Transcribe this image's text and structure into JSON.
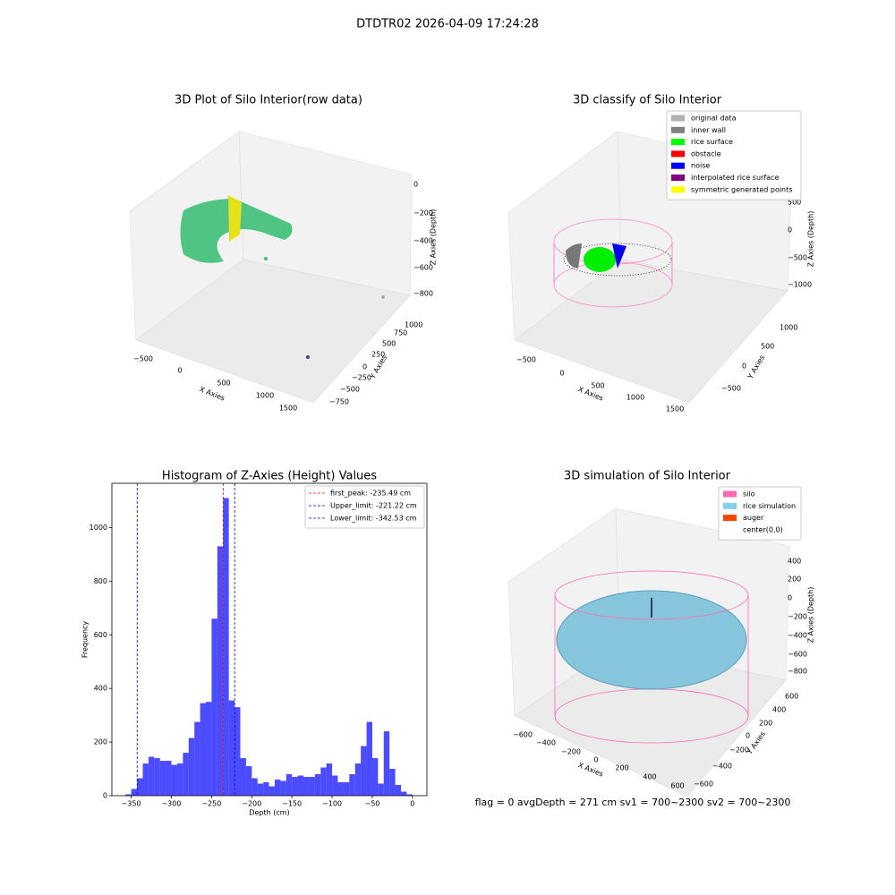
{
  "title": "DTDTR02 2026-04-09 17:24:28",
  "footer": "flag = 0     avgDepth = 271 cm  sv1 = 700~2300  sv2 = 700~2300",
  "chart_data": [
    {
      "type": "scatter3d",
      "title": "3D Plot of Silo Interior(row data)",
      "x_label": "X Axies",
      "y_label": "Y Axies",
      "z_label": "Z Axies (Depth)",
      "xticks": [
        {
          "value": -500,
          "label": "−500"
        },
        0,
        500,
        1000,
        1500
      ],
      "yticks": [
        {
          "value": -750,
          "label": "−750"
        },
        {
          "value": -500,
          "label": "−500"
        },
        {
          "value": -250,
          "label": "−250"
        },
        0,
        250,
        500,
        750,
        1000
      ],
      "zticks": [
        0,
        {
          "value": -200,
          "label": "−200"
        },
        {
          "value": -400,
          "label": "−400"
        },
        {
          "value": -600,
          "label": "−600"
        },
        {
          "value": -800,
          "label": "−800"
        }
      ]
    },
    {
      "type": "scatter3d",
      "title": "3D classify of Silo Interior",
      "x_label": "X Axies",
      "y_label": "Y Axies",
      "z_label": "Z Axies (Depth)",
      "xticks": [
        {
          "value": -500,
          "label": "−500"
        },
        0,
        500,
        1000,
        1500
      ],
      "yticks": [
        {
          "value": -500,
          "label": "−500"
        },
        0,
        500,
        1000
      ],
      "zticks": [
        500,
        0,
        {
          "value": -500,
          "label": "−500"
        },
        {
          "value": -1000,
          "label": "−1000"
        }
      ],
      "legend": [
        {
          "name": "original data",
          "color": "#b0b0b0"
        },
        {
          "name": "inner wall",
          "color": "#808080"
        },
        {
          "name": "rice surface",
          "color": "#00ff00"
        },
        {
          "name": "obstacle",
          "color": "#ff0000"
        },
        {
          "name": "noise",
          "color": "#0000ff"
        },
        {
          "name": "interpolated rice surface",
          "color": "#800080"
        },
        {
          "name": "symmetric generated points",
          "color": "#ffff00"
        }
      ]
    },
    {
      "type": "histogram",
      "title": "Histogram of Z-Axies (Height) Values",
      "x_label": "Depth (cm)",
      "y_label": "Frequency",
      "color": "#0000ff",
      "bins": [
        -357,
        -349.86,
        -342.72,
        -335.58,
        -328.44,
        -321.3,
        -314.16,
        -307.02,
        -299.88,
        -292.74,
        -285.6,
        -278.46,
        -271.32,
        -264.18,
        -257.04,
        -249.9,
        -242.76,
        -235.62,
        -228.48,
        -221.34,
        -214.2,
        -207.06,
        -199.92,
        -192.78,
        -185.64,
        -178.5,
        -171.36,
        -164.22,
        -157.08,
        -149.94,
        -142.8,
        -135.66,
        -128.52,
        -121.38,
        -114.24,
        -107.1,
        -99.96,
        -92.82,
        -85.68,
        -78.54,
        -71.4,
        -64.26,
        -57.12,
        -49.98,
        -42.84,
        -35.7,
        -28.56,
        -21.42,
        -14.28,
        -7.14,
        0
      ],
      "values": [
        5,
        25,
        65,
        120,
        145,
        140,
        130,
        130,
        115,
        120,
        160,
        215,
        275,
        345,
        350,
        660,
        930,
        1110,
        355,
        330,
        140,
        110,
        65,
        45,
        50,
        35,
        60,
        55,
        80,
        70,
        75,
        70,
        70,
        80,
        105,
        120,
        75,
        50,
        50,
        80,
        120,
        185,
        275,
        140,
        45,
        240,
        100,
        40,
        15,
        5
      ],
      "xlim": [
        -374,
        18
      ],
      "ylim": [
        0,
        1165
      ],
      "xticks": [
        {
          "value": -350,
          "label": "−350"
        },
        {
          "value": -300,
          "label": "−300"
        },
        {
          "value": -250,
          "label": "−250"
        },
        {
          "value": -200,
          "label": "−200"
        },
        {
          "value": -150,
          "label": "−150"
        },
        {
          "value": -100,
          "label": "−100"
        },
        {
          "value": -50,
          "label": "−50"
        },
        0
      ],
      "yticks": [
        0,
        200,
        400,
        600,
        800,
        1000
      ],
      "vlines": [
        {
          "name": "first_peak: -235.49 cm",
          "value": -235.49,
          "color": "#ff0000"
        },
        {
          "name": "Upper_limit: -221.22 cm",
          "value": -221.22,
          "color": "#0000ff"
        },
        {
          "name": "Lower_limit: -342.53 cm",
          "value": -342.53,
          "color": "#0000ff"
        }
      ]
    },
    {
      "type": "scatter3d",
      "title": "3D simulation of Silo Interior",
      "x_label": "X Axies",
      "y_label": "Y Axies",
      "z_label": "Z Axies (Depth)",
      "xticks": [
        {
          "value": -600,
          "label": "−600"
        },
        {
          "value": -400,
          "label": "−400"
        },
        {
          "value": -200,
          "label": "−200"
        },
        0,
        200,
        400,
        600
      ],
      "yticks": [
        {
          "value": -600,
          "label": "−600"
        },
        {
          "value": -400,
          "label": "−400"
        },
        {
          "value": -200,
          "label": "−200"
        },
        0,
        200,
        400,
        600
      ],
      "zticks": [
        400,
        200,
        0,
        {
          "value": -200,
          "label": "−200"
        },
        {
          "value": -400,
          "label": "−400"
        },
        {
          "value": -600,
          "label": "−600"
        },
        {
          "value": -800,
          "label": "−800"
        }
      ],
      "legend": [
        {
          "name": "silo",
          "color": "#ff69b4"
        },
        {
          "name": "rice simulation",
          "color": "#87ceeb"
        },
        {
          "name": "auger",
          "color": "#ff4500"
        },
        {
          "name": "center(0,0)",
          "color": "#ffffff"
        }
      ]
    }
  ]
}
